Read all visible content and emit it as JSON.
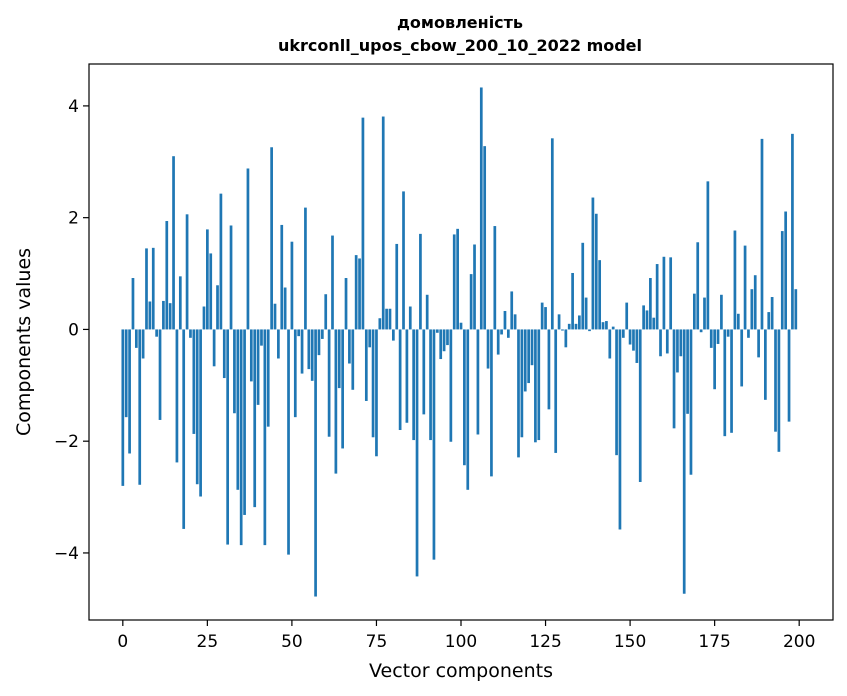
{
  "chart_data": {
    "type": "bar",
    "title_line1": "домовленість",
    "title_line2": "ukrconll_upos_cbow_200_10_2022 model",
    "xlabel": "Vector components",
    "ylabel": "Components values",
    "xlim": [
      -10,
      210
    ],
    "ylim": [
      -5.2,
      4.75
    ],
    "xticks": [
      0,
      25,
      50,
      75,
      100,
      125,
      150,
      175,
      200
    ],
    "yticks": [
      -4,
      -2,
      0,
      2,
      4
    ],
    "bar_color": "#1f77b4",
    "values": [
      -2.8,
      -1.57,
      -2.22,
      0.92,
      -0.33,
      -2.78,
      -0.52,
      1.45,
      0.5,
      1.46,
      -0.13,
      -1.62,
      0.51,
      1.94,
      0.47,
      3.1,
      -2.38,
      0.95,
      -3.57,
      2.06,
      -0.15,
      -1.87,
      -2.77,
      -2.99,
      0.41,
      1.79,
      1.36,
      -0.66,
      0.79,
      2.43,
      -0.87,
      -3.85,
      1.86,
      -1.5,
      -2.87,
      -3.86,
      -3.32,
      2.88,
      -0.93,
      -3.18,
      -1.35,
      -0.29,
      -3.86,
      -1.74,
      3.26,
      0.46,
      -0.52,
      1.87,
      0.75,
      -4.03,
      1.57,
      -1.57,
      -0.12,
      -0.79,
      2.18,
      -0.71,
      -0.92,
      -4.78,
      -0.46,
      -0.17,
      0.63,
      -1.92,
      1.68,
      -2.58,
      -1.05,
      -2.13,
      0.92,
      -0.61,
      -1.08,
      1.33,
      1.27,
      3.79,
      -1.28,
      -0.32,
      -1.93,
      -2.27,
      0.2,
      3.81,
      0.37,
      0.37,
      -0.2,
      1.53,
      -1.8,
      2.47,
      -1.67,
      0.41,
      -1.98,
      -4.42,
      1.71,
      -1.52,
      0.62,
      -1.98,
      -4.12,
      -0.06,
      -0.53,
      -0.39,
      -0.28,
      -2.01,
      1.7,
      1.8,
      0.12,
      -2.43,
      -2.87,
      0.99,
      1.52,
      -1.88,
      4.33,
      3.28,
      -0.7,
      -2.63,
      1.85,
      -0.45,
      -0.09,
      0.33,
      -0.15,
      0.68,
      0.27,
      -2.29,
      -1.93,
      -1.11,
      -0.96,
      -0.64,
      -2.02,
      -1.98,
      0.48,
      0.4,
      -1.43,
      3.42,
      -2.21,
      0.27,
      -0.02,
      -0.32,
      0.1,
      1.01,
      0.1,
      0.25,
      1.55,
      0.57,
      -0.03,
      2.36,
      2.07,
      1.24,
      0.13,
      0.15,
      -0.52,
      0.05,
      -2.25,
      -3.58,
      -0.15,
      0.48,
      -0.27,
      -0.38,
      -0.6,
      -2.73,
      0.43,
      0.34,
      0.92,
      0.21,
      1.17,
      -0.48,
      1.3,
      -0.43,
      1.29,
      -1.77,
      -0.77,
      -0.48,
      -4.73,
      -1.51,
      -2.6,
      0.64,
      1.56,
      -0.05,
      0.57,
      2.65,
      -0.33,
      -1.07,
      -0.26,
      0.62,
      -1.91,
      -0.13,
      -1.85,
      1.77,
      0.28,
      -1.02,
      1.5,
      -0.15,
      0.72,
      0.97,
      -0.5,
      3.41,
      -1.26,
      0.31,
      0.58,
      -1.83,
      -2.19,
      1.76,
      2.11,
      -1.65,
      3.5,
      0.72
    ]
  }
}
